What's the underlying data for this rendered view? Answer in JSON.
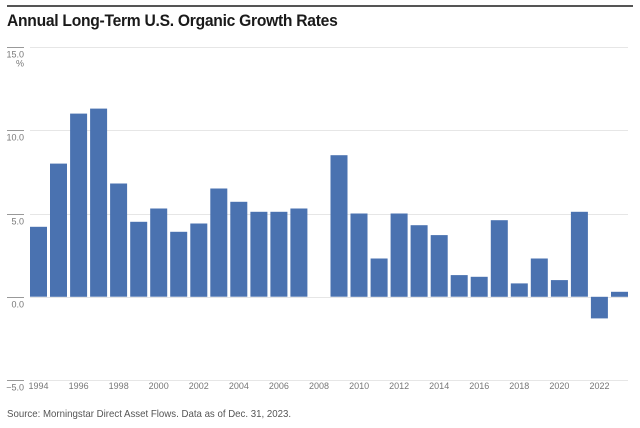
{
  "chart_data": {
    "type": "bar",
    "title": "Annual Long-Term U.S. Organic Growth Rates",
    "xlabel": "",
    "ylabel": "%",
    "ylim": [
      -5,
      15
    ],
    "yticks": [
      15,
      10,
      5,
      0,
      -5
    ],
    "ytick_labels": [
      "15.0",
      "10.0",
      "5.0",
      "0.0",
      "−5.0"
    ],
    "y_unit_label": "%",
    "grid": true,
    "categories": [
      "1994",
      "1995",
      "1996",
      "1997",
      "1998",
      "1999",
      "2000",
      "2001",
      "2002",
      "2003",
      "2004",
      "2005",
      "2006",
      "2007",
      "2008",
      "2009",
      "2010",
      "2011",
      "2012",
      "2013",
      "2014",
      "2015",
      "2016",
      "2017",
      "2018",
      "2019",
      "2020",
      "2021",
      "2022",
      "2023"
    ],
    "xtick_labels": [
      "1994",
      "1996",
      "1998",
      "2000",
      "2002",
      "2004",
      "2006",
      "2008",
      "2010",
      "2012",
      "2014",
      "2016",
      "2018",
      "2020",
      "2022"
    ],
    "series": [
      {
        "name": "Organic Growth Rate",
        "color": "#4a72b0",
        "values": [
          4.2,
          8.0,
          11.0,
          11.3,
          6.8,
          4.5,
          5.3,
          3.9,
          4.4,
          6.5,
          5.7,
          5.1,
          5.1,
          5.3,
          0.0,
          8.5,
          5.0,
          2.3,
          5.0,
          4.3,
          3.7,
          1.3,
          1.2,
          4.6,
          0.8,
          2.3,
          1.0,
          5.1,
          -1.3,
          0.3
        ]
      }
    ],
    "source": "Source: Morningstar Direct Asset Flows. Data as of Dec. 31, 2023."
  }
}
